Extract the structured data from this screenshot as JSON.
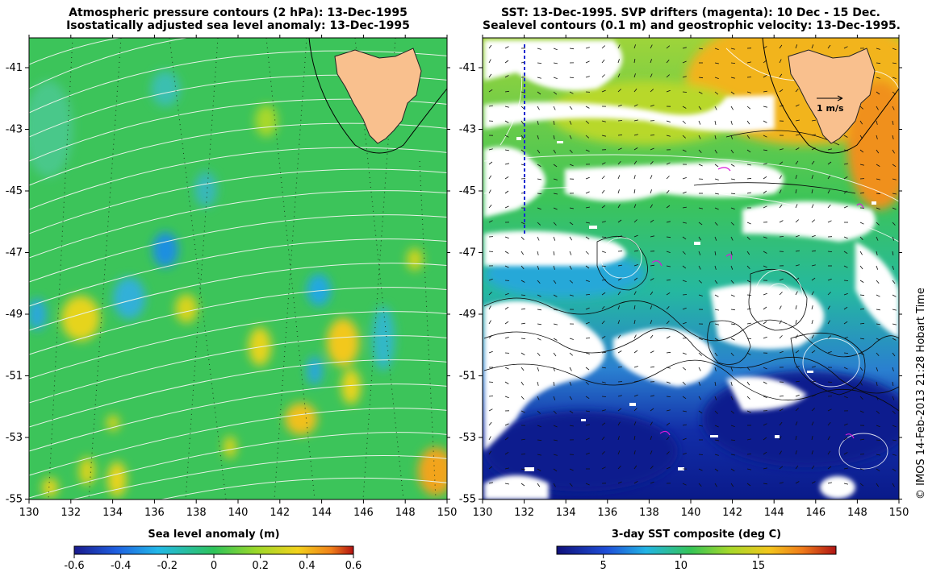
{
  "left_panel": {
    "title_line1": "Atmospheric pressure contours (2 hPa): 13-Dec-1995",
    "title_line2": "Isostatically adjusted sea level anomaly: 13-Dec-1995",
    "x_ticks": [
      "130",
      "132",
      "134",
      "136",
      "138",
      "140",
      "142",
      "144",
      "146",
      "148",
      "150"
    ],
    "y_ticks": [
      "-41",
      "-43",
      "-45",
      "-47",
      "-49",
      "-51",
      "-53",
      "-55"
    ],
    "colorbar_label": "Sea level anomaly (m)",
    "colorbar_ticks": [
      "-0.6",
      "-0.4",
      "-0.2",
      "0",
      "0.2",
      "0.4",
      "0.6"
    ],
    "x_range": [
      130,
      150
    ],
    "y_range": [
      -55,
      -40
    ]
  },
  "right_panel": {
    "title_line1": "SST: 13-Dec-1995. SVP drifters (magenta): 10 Dec - 15 Dec.",
    "title_line2": "Sealevel contours (0.1 m) and geostrophic velocity: 13-Dec-1995.",
    "x_ticks": [
      "130",
      "132",
      "134",
      "136",
      "138",
      "140",
      "142",
      "144",
      "146",
      "148",
      "150"
    ],
    "y_ticks": [
      "-41",
      "-43",
      "-45",
      "-47",
      "-49",
      "-51",
      "-53",
      "-55"
    ],
    "velocity_scale_label": "1 m/s",
    "colorbar_label": "3-day SST composite (deg C)",
    "colorbar_ticks": [
      "5",
      "10",
      "15"
    ],
    "colorbar_range": [
      2,
      20
    ]
  },
  "credit": "© IMOS 14-Feb-2013 21:28 Hobart Time",
  "colors": {
    "land": "#f9c08e",
    "ocean_green": "#3fc66a",
    "cloud": "#ffffff",
    "cold": "#0a1f9a"
  }
}
